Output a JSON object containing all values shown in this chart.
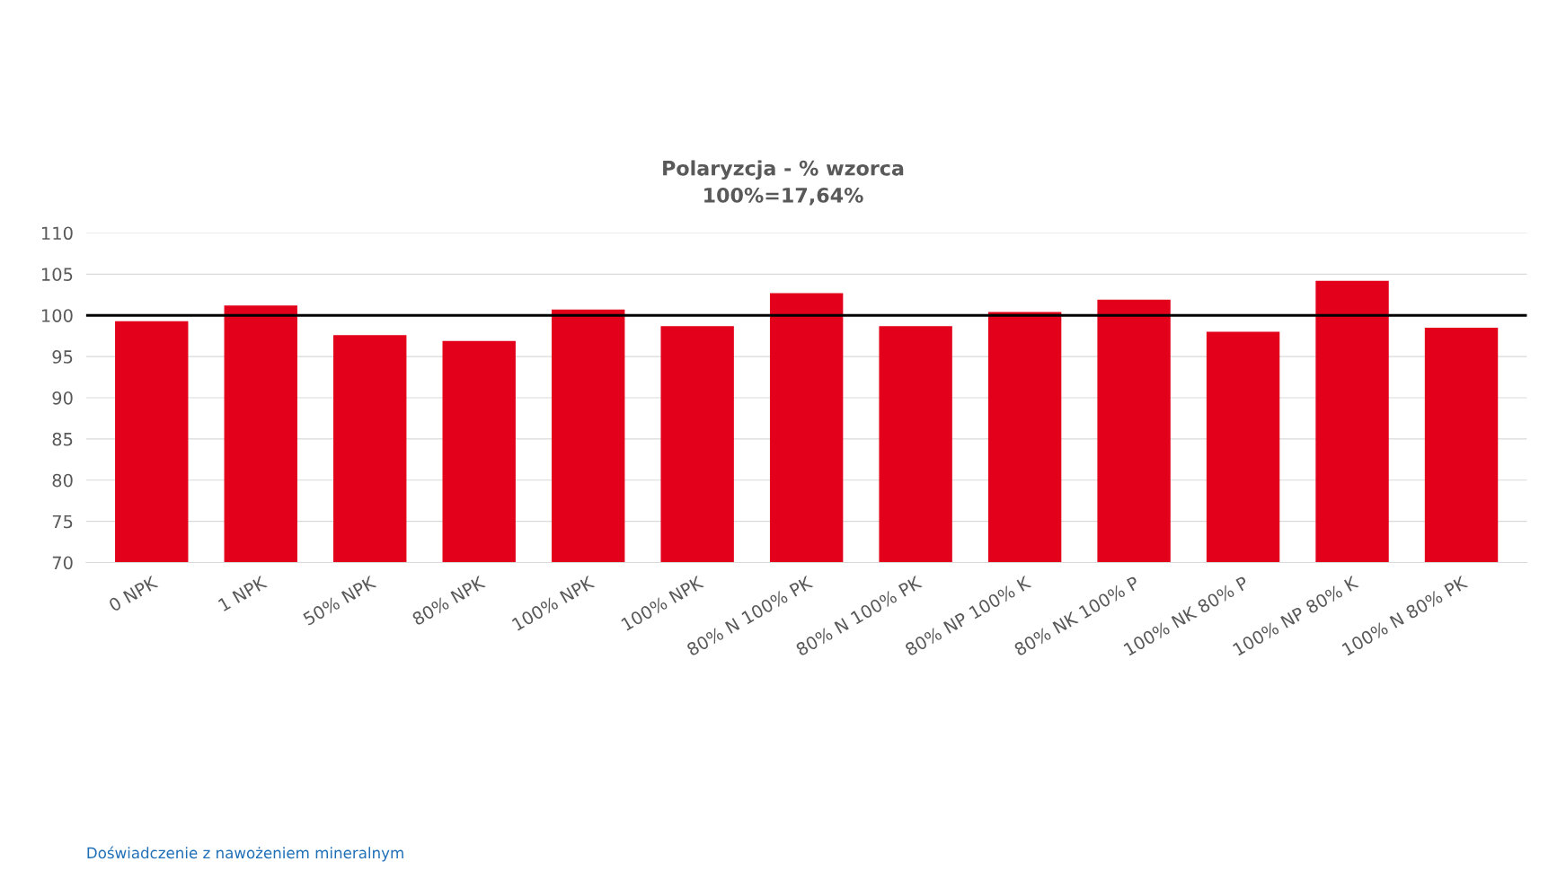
{
  "chart_data": {
    "type": "bar",
    "title": "Polaryzcja - % wzorca\n100%=17,64%",
    "categories": [
      "0 NPK",
      "1 NPK",
      "50% NPK",
      "80% NPK",
      "100% NPK",
      "100% NPK",
      "80% N 100% PK",
      "80% N 100% PK",
      "80% NP 100% K",
      "80% NK 100% P",
      "100% NK 80% P",
      "100% NP 80% K",
      "100% N 80% PK"
    ],
    "values": [
      99.3,
      101.2,
      97.6,
      96.9,
      100.7,
      98.7,
      102.7,
      98.7,
      100.4,
      101.9,
      98.0,
      104.2,
      98.5
    ],
    "color": "#e2001a",
    "ylim": [
      70,
      110
    ],
    "yticks": [
      70,
      75,
      80,
      85,
      90,
      95,
      100,
      105,
      110
    ],
    "grid": "y",
    "ref_lines": [
      {
        "axis": "y",
        "value": 100,
        "color": "#000000"
      }
    ],
    "annotations": [
      "Doświadczenie z nawożeniem mineralnym"
    ]
  }
}
